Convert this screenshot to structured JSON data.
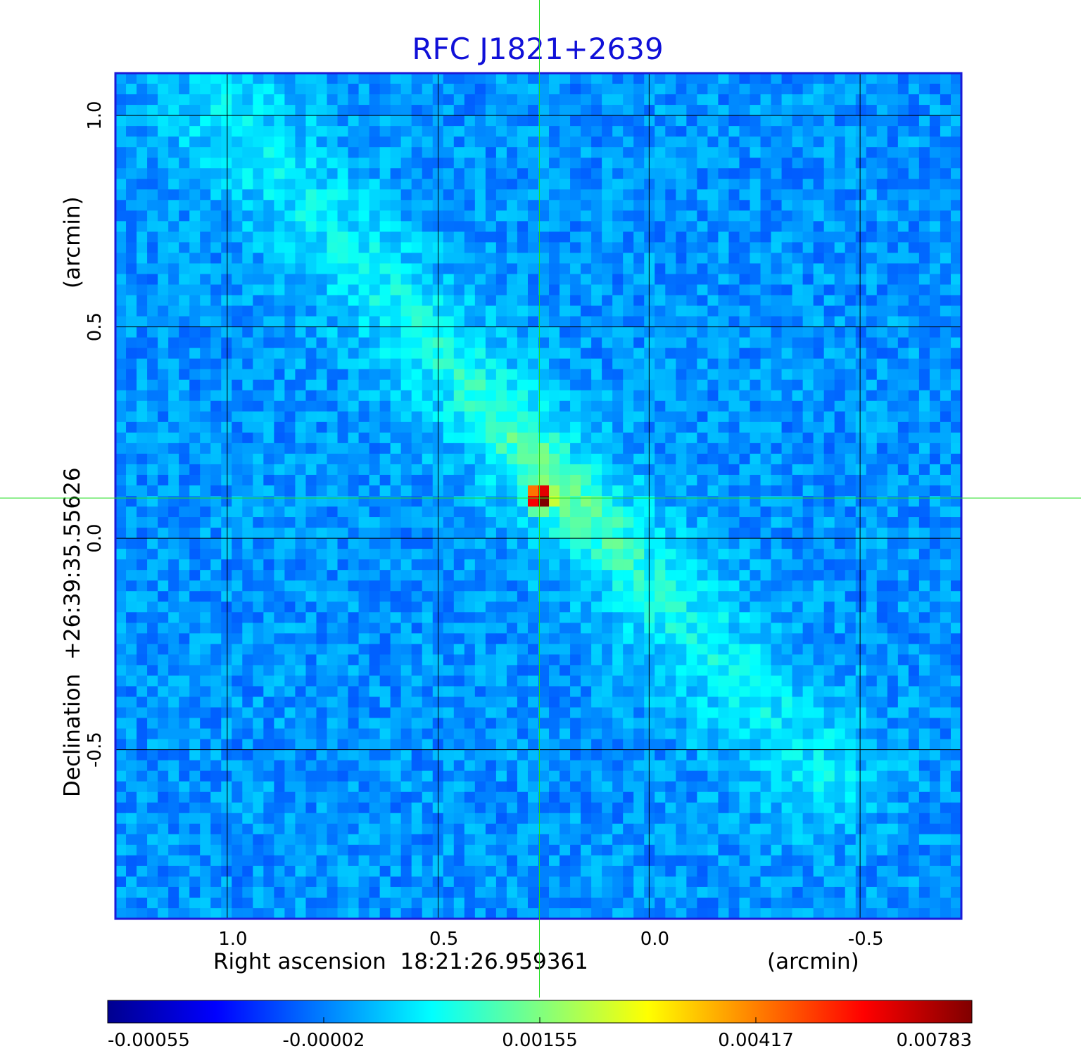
{
  "chart_data": {
    "type": "heatmap",
    "title": "RFC J1821+2639",
    "xlabel": "Right ascension  18:21:26.959361",
    "xunit": "(arcmin)",
    "ylabel": "Declination  +26:39:35.55626",
    "yunit": "(arcmin)",
    "x_ticks": [
      "1.0",
      "0.5",
      "0.0",
      "-0.5"
    ],
    "x_tick_values": [
      1.0,
      0.5,
      0.0,
      -0.5
    ],
    "y_ticks": [
      "1.0",
      "0.5",
      "0.0",
      "-0.5"
    ],
    "y_tick_values": [
      1.0,
      0.5,
      0.0,
      -0.5
    ],
    "xlim": [
      1.265,
      -0.74
    ],
    "ylim": [
      -0.9,
      1.1
    ],
    "crosshair": {
      "x": 0.26,
      "y": 0.095
    },
    "grid": true,
    "colorbar": {
      "ticks": [
        "-0.00055",
        "-0.00002",
        "0.00155",
        "0.00417",
        "0.00783"
      ],
      "values": [
        -0.00055,
        -2e-05,
        0.00155,
        0.00417,
        0.00783
      ],
      "colormap": "jet"
    },
    "features": [
      {
        "kind": "core",
        "x": 0.26,
        "y": 0.095,
        "value": 0.0078
      },
      {
        "kind": "jet",
        "from": [
          1.0,
          1.0
        ],
        "to": [
          -0.4,
          -0.55
        ]
      }
    ],
    "colors": {
      "title": "#1010d8",
      "frame": "#1a1ad8",
      "grid": "#000000",
      "crosshair": "#22dd22"
    }
  }
}
